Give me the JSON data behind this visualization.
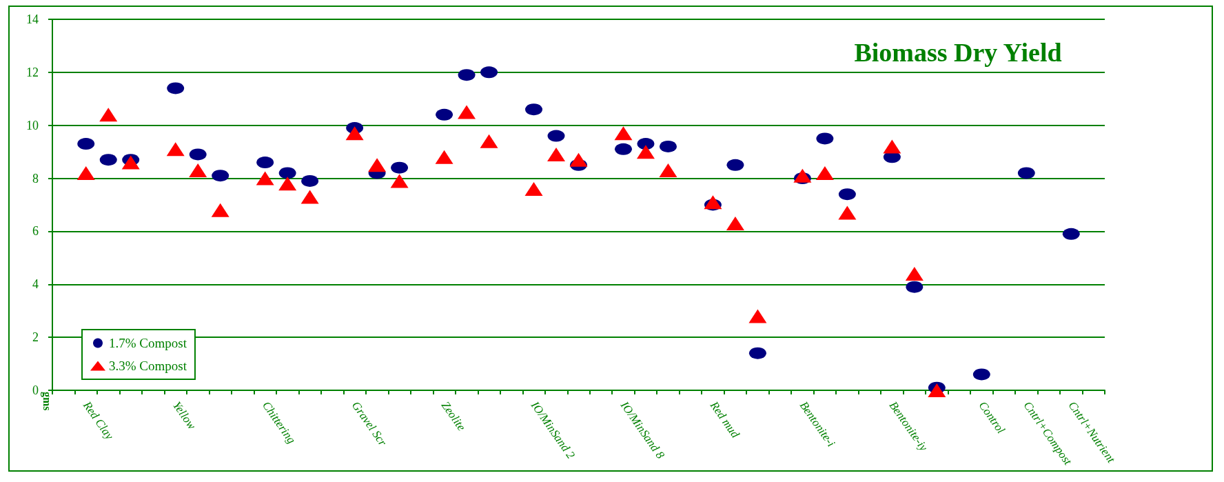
{
  "chart_data": {
    "type": "scatter",
    "title": "Biomass Dry Yield",
    "ylabel": "gms",
    "categories": [
      null,
      "Red Clay",
      null,
      null,
      null,
      "Yellow",
      null,
      null,
      null,
      "Chittering",
      null,
      null,
      null,
      "Gravel Scr",
      null,
      null,
      null,
      "Zeolite",
      null,
      null,
      null,
      "IO/MinSand 2",
      null,
      null,
      null,
      "IO/MinSand 8",
      null,
      null,
      null,
      "Red mud",
      null,
      null,
      null,
      "Bentonite-i",
      null,
      null,
      null,
      "Bentonite-iy",
      null,
      null,
      null,
      "Control",
      null,
      "Cntrl+Compost",
      null,
      "Cntrl+Nutrient",
      null
    ],
    "series": [
      {
        "name": "1.7% Compost",
        "color": "#000080",
        "marker": "circle",
        "values": [
          null,
          9.3,
          8.7,
          8.7,
          null,
          11.4,
          8.9,
          8.1,
          null,
          8.6,
          8.2,
          7.9,
          null,
          9.9,
          8.2,
          8.4,
          null,
          10.4,
          11.9,
          12.0,
          null,
          10.6,
          9.6,
          8.5,
          null,
          9.1,
          9.3,
          9.2,
          null,
          7.0,
          8.5,
          1.4,
          null,
          8.0,
          9.5,
          7.4,
          null,
          8.8,
          3.9,
          0.1,
          null,
          0.6,
          null,
          8.2,
          null,
          5.9,
          null
        ]
      },
      {
        "name": "3.3% Compost",
        "color": "#ff0000",
        "marker": "triangle",
        "values": [
          null,
          8.2,
          10.4,
          8.6,
          null,
          9.1,
          8.3,
          6.8,
          null,
          8.0,
          7.8,
          7.3,
          null,
          9.7,
          8.5,
          7.9,
          null,
          8.8,
          10.5,
          9.4,
          null,
          7.6,
          8.9,
          8.7,
          null,
          9.7,
          9.0,
          8.3,
          null,
          7.1,
          6.3,
          2.8,
          null,
          8.1,
          8.2,
          6.7,
          null,
          9.2,
          4.4,
          0.0,
          null,
          null,
          null,
          null,
          null,
          null,
          null
        ]
      }
    ],
    "ylim": [
      0,
      14
    ],
    "yticks": [
      0,
      2,
      4,
      6,
      8,
      10,
      12,
      14
    ],
    "grid": "y",
    "legend": "bottom left"
  }
}
